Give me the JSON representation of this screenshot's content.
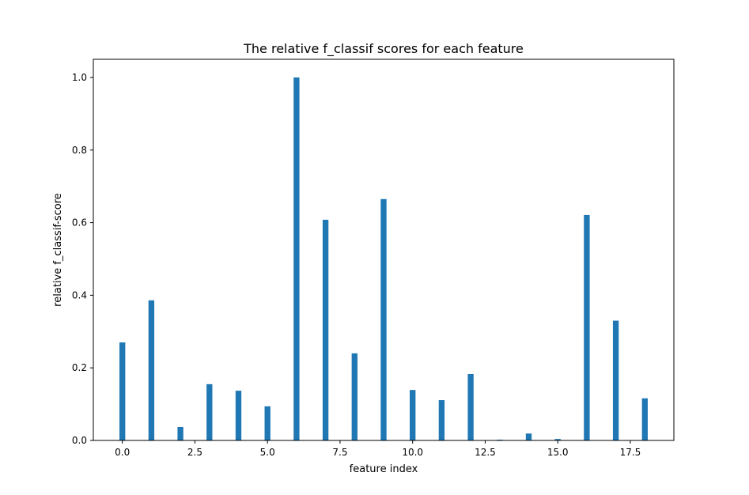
{
  "chart_data": {
    "type": "bar",
    "title": "The relative f_classif scores for each feature",
    "xlabel": "feature index",
    "ylabel": "relative f_classif-score",
    "x": [
      0,
      1,
      2,
      3,
      4,
      5,
      6,
      7,
      8,
      9,
      10,
      11,
      12,
      13,
      14,
      15,
      16,
      17,
      18
    ],
    "values": [
      0.27,
      0.386,
      0.037,
      0.155,
      0.137,
      0.094,
      1.0,
      0.608,
      0.24,
      0.665,
      0.139,
      0.111,
      0.183,
      0.002,
      0.019,
      0.004,
      0.621,
      0.33,
      0.116
    ],
    "xlim": [
      -1,
      19
    ],
    "ylim": [
      0,
      1.05
    ],
    "xticks": [
      0.0,
      2.5,
      5.0,
      7.5,
      10.0,
      12.5,
      15.0,
      17.5
    ],
    "xtick_labels": [
      "0.0",
      "2.5",
      "5.0",
      "7.5",
      "10.0",
      "12.5",
      "15.0",
      "17.5"
    ],
    "yticks": [
      0.0,
      0.2,
      0.4,
      0.6,
      0.8,
      1.0
    ],
    "ytick_labels": [
      "0.0",
      "0.2",
      "0.4",
      "0.6",
      "0.8",
      "1.0"
    ],
    "bar_width": 0.2,
    "grid": false,
    "legend": "none",
    "bar_color": "#1f77b4"
  }
}
